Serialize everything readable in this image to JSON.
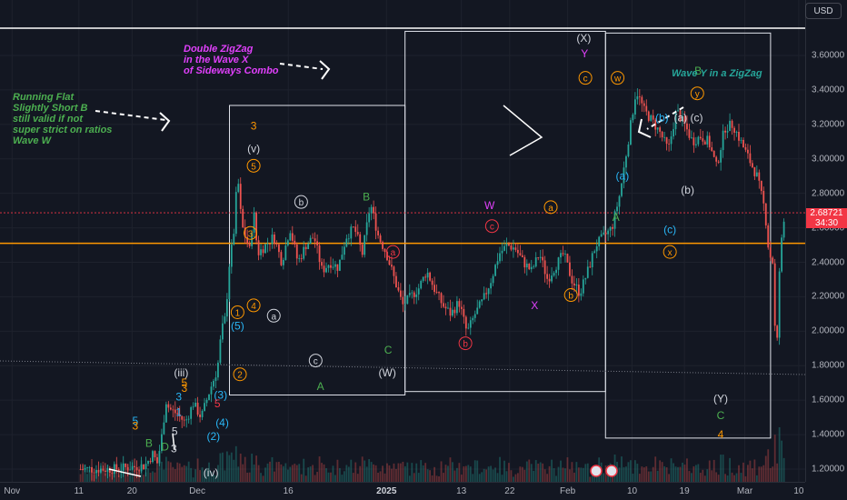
{
  "chart_data": {
    "type": "candlestick",
    "y_ticks": [
      "3.60000",
      "3.40000",
      "3.20000",
      "3.00000",
      "2.80000",
      "2.60000",
      "2.40000",
      "2.20000",
      "2.00000",
      "1.80000",
      "1.60000",
      "1.40000",
      "1.20000"
    ],
    "x_ticks": [
      "Nov",
      "11",
      "20",
      "Dec",
      "16",
      "2025",
      "13",
      "22",
      "Feb",
      "10",
      "19",
      "Mar",
      "10"
    ],
    "currency": "USD",
    "last_price": "2.68721",
    "countdown": "34:30",
    "horizontal_levels": [
      2.51,
      1.75
    ],
    "ohlc_path": [
      [
        10,
        1.2
      ],
      [
        14,
        1.2
      ],
      [
        18,
        1.22
      ],
      [
        19,
        1.29
      ],
      [
        19.5,
        1.23
      ],
      [
        20,
        1.36
      ],
      [
        20.3,
        1.47
      ],
      [
        20.6,
        1.6
      ],
      [
        21,
        1.55
      ],
      [
        22,
        1.52
      ],
      [
        23,
        1.47
      ],
      [
        24,
        1.58
      ],
      [
        25,
        1.5
      ],
      [
        26,
        1.65
      ],
      [
        27,
        1.78
      ],
      [
        27.5,
        2.0
      ],
      [
        28,
        2.08
      ],
      [
        28.5,
        2.4
      ],
      [
        29,
        2.55
      ],
      [
        29.5,
        2.91
      ],
      [
        30,
        2.62
      ],
      [
        31,
        2.47
      ],
      [
        31.5,
        2.7
      ],
      [
        32,
        2.45
      ],
      [
        33,
        2.5
      ],
      [
        34,
        2.55
      ],
      [
        35,
        2.4
      ],
      [
        36,
        2.6
      ],
      [
        37,
        2.4
      ],
      [
        38,
        2.5
      ],
      [
        39,
        2.55
      ],
      [
        40,
        2.35
      ],
      [
        41,
        2.4
      ],
      [
        42,
        2.37
      ],
      [
        43,
        2.55
      ],
      [
        44,
        2.6
      ],
      [
        45,
        2.45
      ],
      [
        46,
        2.74
      ],
      [
        47,
        2.55
      ],
      [
        48,
        2.45
      ],
      [
        49,
        2.3
      ],
      [
        50,
        2.15
      ],
      [
        51,
        2.2
      ],
      [
        52,
        2.25
      ],
      [
        53,
        2.35
      ],
      [
        54,
        2.24
      ],
      [
        55,
        2.15
      ],
      [
        56,
        2.1
      ],
      [
        57,
        2.17
      ],
      [
        58,
        1.99
      ],
      [
        59,
        2.1
      ],
      [
        60,
        2.18
      ],
      [
        61,
        2.3
      ],
      [
        62,
        2.45
      ],
      [
        63,
        2.5
      ],
      [
        64,
        2.48
      ],
      [
        65,
        2.4
      ],
      [
        66,
        2.35
      ],
      [
        67,
        2.45
      ],
      [
        68,
        2.3
      ],
      [
        69,
        2.38
      ],
      [
        70,
        2.45
      ],
      [
        71,
        2.3
      ],
      [
        72,
        2.22
      ],
      [
        73,
        2.35
      ],
      [
        74,
        2.5
      ],
      [
        75,
        2.55
      ],
      [
        76,
        2.6
      ],
      [
        77,
        2.8
      ],
      [
        78,
        3.1
      ],
      [
        79,
        3.4
      ],
      [
        80,
        3.28
      ],
      [
        81,
        3.22
      ],
      [
        82,
        3.15
      ],
      [
        83,
        3.05
      ],
      [
        84,
        3.28
      ],
      [
        85,
        3.2
      ],
      [
        86,
        3.1
      ],
      [
        87,
        3.13
      ],
      [
        88,
        3.1
      ],
      [
        89,
        2.95
      ],
      [
        90,
        3.18
      ],
      [
        91,
        3.2
      ],
      [
        92,
        3.1
      ],
      [
        93,
        3.0
      ],
      [
        94,
        2.9
      ],
      [
        95,
        2.7
      ],
      [
        95.5,
        2.45
      ],
      [
        96,
        2.4
      ],
      [
        96.4,
        1.77
      ],
      [
        96.8,
        2.35
      ],
      [
        97.2,
        2.6
      ],
      [
        97.6,
        2.69
      ]
    ],
    "regions": [
      {
        "x": [
          28.5,
          50.3
        ],
        "y": [
          1.63,
          3.31
        ]
      },
      {
        "x": [
          50.3,
          75.2
        ],
        "y": [
          1.65,
          3.74
        ]
      },
      {
        "x": [
          75.2,
          95.7
        ],
        "y": [
          1.38,
          3.73
        ]
      }
    ],
    "wave_labels": [
      {
        "text": "(X)",
        "x": 72.5,
        "y": 3.7,
        "color": "#d1d4dc",
        "circle": false
      },
      {
        "text": "Y",
        "x": 72.6,
        "y": 3.61,
        "color": "#e040fb",
        "circle": false
      },
      {
        "text": "c",
        "x": 72.7,
        "y": 3.47,
        "color": "#ff9800",
        "circle": true
      },
      {
        "text": "w",
        "x": 76.7,
        "y": 3.47,
        "color": "#ff9800",
        "circle": true
      },
      {
        "text": "B",
        "x": 86.7,
        "y": 3.51,
        "color": "#4caf50",
        "circle": false
      },
      {
        "text": "y",
        "x": 86.6,
        "y": 3.38,
        "color": "#ff9800",
        "circle": true
      },
      {
        "text": "(b)",
        "x": 82.2,
        "y": 3.24,
        "color": "#29b6f6",
        "circle": false
      },
      {
        "text": "(a) (c)",
        "x": 85.5,
        "y": 3.24,
        "color": "#d1d4dc",
        "circle": false
      },
      {
        "text": "(a)",
        "x": 77.3,
        "y": 2.9,
        "color": "#29b6f6",
        "circle": false
      },
      {
        "text": "(b)",
        "x": 85.4,
        "y": 2.82,
        "color": "#d1d4dc",
        "circle": false
      },
      {
        "text": "A",
        "x": 76.5,
        "y": 2.66,
        "color": "#4caf50",
        "circle": false
      },
      {
        "text": "(c)",
        "x": 83.2,
        "y": 2.59,
        "color": "#29b6f6",
        "circle": false
      },
      {
        "text": "x",
        "x": 83.2,
        "y": 2.46,
        "color": "#ff9800",
        "circle": true
      },
      {
        "text": "(Y)",
        "x": 89.5,
        "y": 1.61,
        "color": "#d1d4dc",
        "circle": false
      },
      {
        "text": "C",
        "x": 89.5,
        "y": 1.51,
        "color": "#4caf50",
        "circle": false
      },
      {
        "text": "4",
        "x": 89.5,
        "y": 1.4,
        "color": "#ff9800",
        "circle": false
      },
      {
        "text": "3",
        "x": 31.5,
        "y": 3.19,
        "color": "#ff9800",
        "circle": false
      },
      {
        "text": "(v)",
        "x": 31.5,
        "y": 3.06,
        "color": "#d1d4dc",
        "circle": false
      },
      {
        "text": "5",
        "x": 31.5,
        "y": 2.96,
        "color": "#ff9800",
        "circle": true
      },
      {
        "text": "b",
        "x": 37.4,
        "y": 2.75,
        "color": "#d1d4dc",
        "circle": true
      },
      {
        "text": "B",
        "x": 45.5,
        "y": 2.78,
        "color": "#4caf50",
        "circle": false
      },
      {
        "text": "3",
        "x": 31.1,
        "y": 2.57,
        "color": "#ff9800",
        "circle": true
      },
      {
        "text": "a",
        "x": 48.8,
        "y": 2.46,
        "color": "#f23645",
        "circle": true
      },
      {
        "text": "1",
        "x": 29.5,
        "y": 2.11,
        "color": "#ff9800",
        "circle": true
      },
      {
        "text": "4",
        "x": 31.5,
        "y": 2.15,
        "color": "#ff9800",
        "circle": true
      },
      {
        "text": "a",
        "x": 34.0,
        "y": 2.09,
        "color": "#d1d4dc",
        "circle": true
      },
      {
        "text": "(5)",
        "x": 29.5,
        "y": 2.03,
        "color": "#29b6f6",
        "circle": false
      },
      {
        "text": "c",
        "x": 39.2,
        "y": 1.83,
        "color": "#d1d4dc",
        "circle": true
      },
      {
        "text": "C",
        "x": 48.2,
        "y": 1.89,
        "color": "#4caf50",
        "circle": false
      },
      {
        "text": "(W)",
        "x": 48.1,
        "y": 1.76,
        "color": "#d1d4dc",
        "circle": false
      },
      {
        "text": "A",
        "x": 39.8,
        "y": 1.68,
        "color": "#4caf50",
        "circle": false
      },
      {
        "text": "2",
        "x": 29.8,
        "y": 1.75,
        "color": "#ff9800",
        "circle": true
      },
      {
        "text": "(3)",
        "x": 27.4,
        "y": 1.63,
        "color": "#29b6f6",
        "circle": false
      },
      {
        "text": "W",
        "x": 60.8,
        "y": 2.73,
        "color": "#e040fb",
        "circle": false
      },
      {
        "text": "c",
        "x": 61.1,
        "y": 2.61,
        "color": "#f23645",
        "circle": true
      },
      {
        "text": "a",
        "x": 68.4,
        "y": 2.72,
        "color": "#ff9800",
        "circle": true
      },
      {
        "text": "b",
        "x": 57.8,
        "y": 1.93,
        "color": "#f23645",
        "circle": true
      },
      {
        "text": "b",
        "x": 70.9,
        "y": 2.21,
        "color": "#ff9800",
        "circle": true
      },
      {
        "text": "X",
        "x": 66.4,
        "y": 2.15,
        "color": "#e040fb",
        "circle": false
      },
      {
        "text": "(iii)",
        "x": 22.5,
        "y": 1.76,
        "color": "#d1d4dc",
        "circle": false
      },
      {
        "text": "5",
        "x": 22.9,
        "y": 1.7,
        "color": "#ff9800",
        "circle": false
      },
      {
        "text": "3",
        "x": 22.9,
        "y": 1.67,
        "color": "#ff9800",
        "circle": false
      },
      {
        "text": "3",
        "x": 22.2,
        "y": 1.62,
        "color": "#29b6f6",
        "circle": false
      },
      {
        "text": "5",
        "x": 27.0,
        "y": 1.58,
        "color": "#f23645",
        "circle": false
      },
      {
        "text": "1",
        "x": 22.2,
        "y": 1.53,
        "color": "#29b6f6",
        "circle": false
      },
      {
        "text": "(4)",
        "x": 27.6,
        "y": 1.47,
        "color": "#29b6f6",
        "circle": false
      },
      {
        "text": "(2)",
        "x": 26.5,
        "y": 1.39,
        "color": "#29b6f6",
        "circle": false
      },
      {
        "text": "5",
        "x": 16.8,
        "y": 1.48,
        "color": "#29b6f6",
        "circle": false
      },
      {
        "text": "3",
        "x": 16.8,
        "y": 1.45,
        "color": "#ff9800",
        "circle": false
      },
      {
        "text": "5",
        "x": 21.7,
        "y": 1.42,
        "color": "#d1d4dc",
        "circle": false
      },
      {
        "text": "B",
        "x": 18.5,
        "y": 1.35,
        "color": "#4caf50",
        "circle": false
      },
      {
        "text": "D",
        "x": 20.5,
        "y": 1.33,
        "color": "#4caf50",
        "circle": false
      },
      {
        "text": "3",
        "x": 21.6,
        "y": 1.32,
        "color": "#d1d4dc",
        "circle": false
      },
      {
        "text": "(iv)",
        "x": 26.2,
        "y": 1.18,
        "color": "#d1d4dc",
        "circle": false
      }
    ],
    "annotations": [
      {
        "text": "Double ZigZag\nin the Wave X\nof Sideways Combo",
        "color": "#e040fb"
      },
      {
        "text": "Running Flat\nSlightly Short B\nstill valid if not\nsuper strict on ratios\nWave W",
        "color": "#4caf50"
      },
      {
        "text": "Wave Y in a ZigZag",
        "color": "#26a69a"
      }
    ]
  }
}
